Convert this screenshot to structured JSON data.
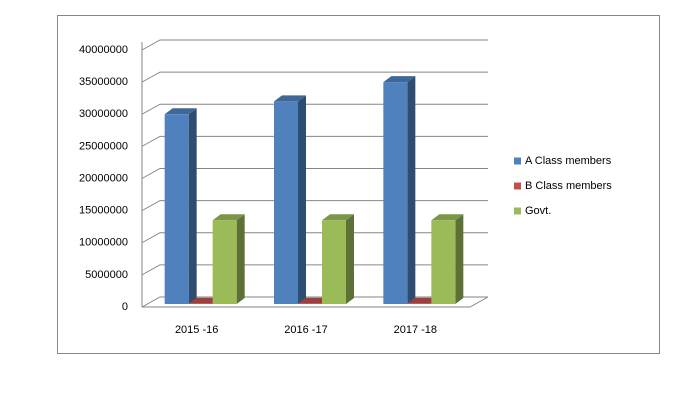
{
  "chart_data": {
    "type": "bar3d",
    "categories": [
      "2015 -16",
      "2016 -17",
      "2017 -18"
    ],
    "series": [
      {
        "name": "A Class members",
        "color": "#4f81bd",
        "values": [
          30000000,
          32000000,
          35000000
        ]
      },
      {
        "name": "B Class  members",
        "color": "#c0504d",
        "values": [
          500000,
          500000,
          500000
        ]
      },
      {
        "name": "Govt.",
        "color": "#9bbb59",
        "values": [
          13500000,
          13500000,
          13500000
        ]
      }
    ],
    "ylim": [
      0,
      40000000
    ],
    "yticks": [
      0,
      5000000,
      10000000,
      15000000,
      20000000,
      25000000,
      30000000,
      35000000,
      40000000
    ],
    "grid": true,
    "legend": "right"
  }
}
